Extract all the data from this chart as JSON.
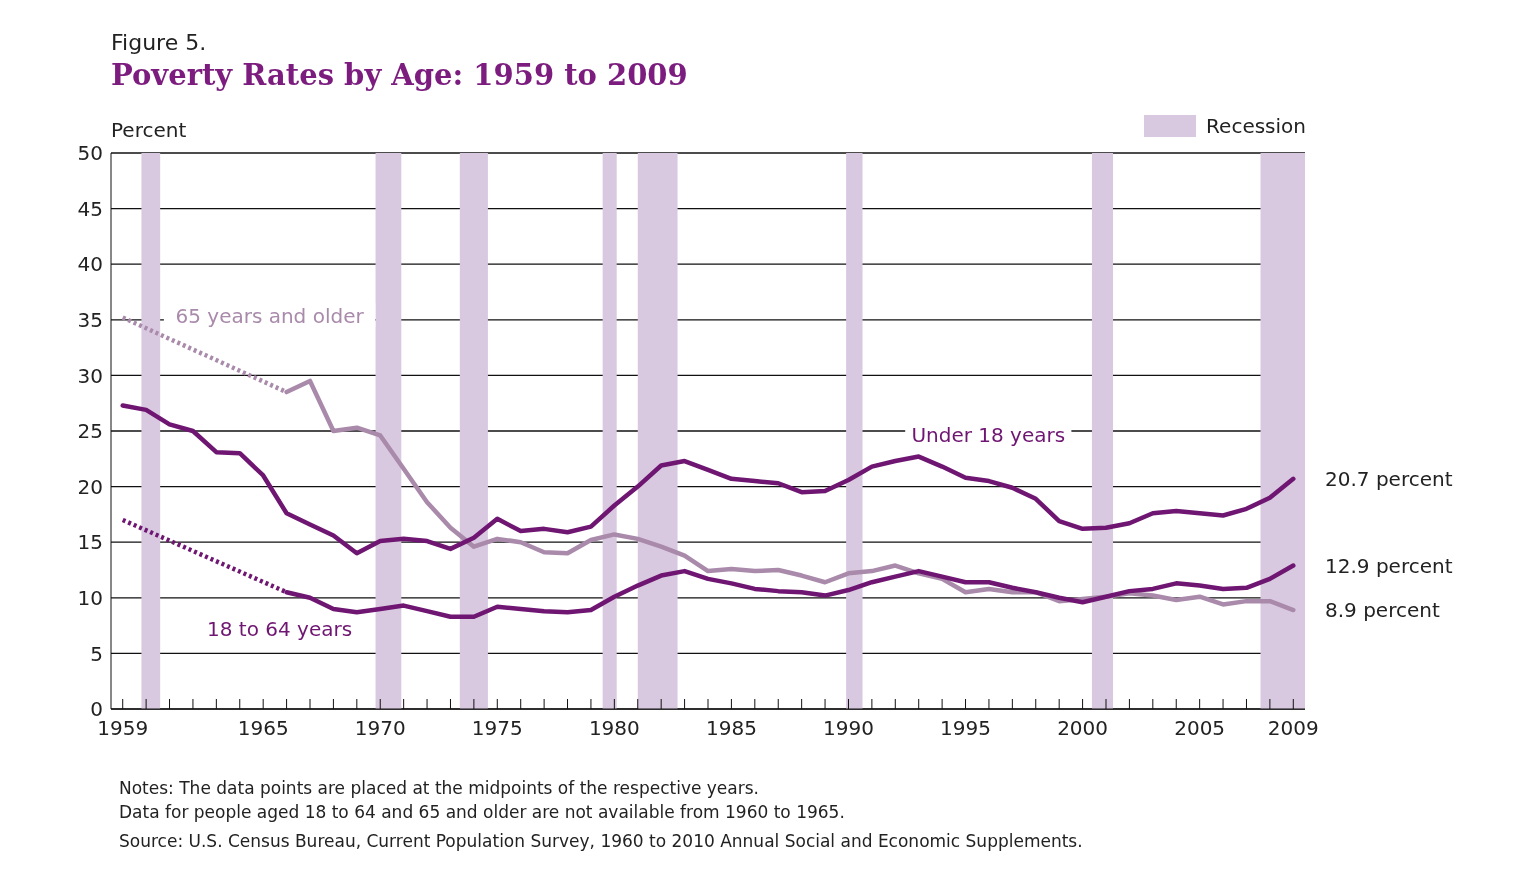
{
  "chart_data": {
    "type": "line",
    "subtitle": "Figure 5.",
    "title": "Poverty Rates by Age: 1959 to 2009",
    "ylabel": "Percent",
    "xlim": [
      1958.5,
      2009.5
    ],
    "ylim": [
      0,
      50
    ],
    "yticks": [
      0,
      5,
      10,
      15,
      20,
      25,
      30,
      35,
      40,
      45,
      50
    ],
    "xticks": [
      1959,
      {
        "value": 1960,
        "label": null
      },
      {
        "value": 1961,
        "label": null
      },
      {
        "value": 1962,
        "label": null
      },
      {
        "value": 1963,
        "label": null
      },
      {
        "value": 1964,
        "label": null
      },
      1965,
      {
        "value": 1966,
        "label": null
      },
      {
        "value": 1967,
        "label": null
      },
      {
        "value": 1968,
        "label": null
      },
      {
        "value": 1969,
        "label": null
      },
      1970,
      {
        "value": 1971,
        "label": null
      },
      {
        "value": 1972,
        "label": null
      },
      {
        "value": 1973,
        "label": null
      },
      {
        "value": 1974,
        "label": null
      },
      1975,
      {
        "value": 1976,
        "label": null
      },
      {
        "value": 1977,
        "label": null
      },
      {
        "value": 1978,
        "label": null
      },
      {
        "value": 1979,
        "label": null
      },
      1980,
      {
        "value": 1981,
        "label": null
      },
      {
        "value": 1982,
        "label": null
      },
      {
        "value": 1983,
        "label": null
      },
      {
        "value": 1984,
        "label": null
      },
      1985,
      {
        "value": 1986,
        "label": null
      },
      {
        "value": 1987,
        "label": null
      },
      {
        "value": 1988,
        "label": null
      },
      {
        "value": 1989,
        "label": null
      },
      1990,
      {
        "value": 1991,
        "label": null
      },
      {
        "value": 1992,
        "label": null
      },
      {
        "value": 1993,
        "label": null
      },
      {
        "value": 1994,
        "label": null
      },
      1995,
      {
        "value": 1996,
        "label": null
      },
      {
        "value": 1997,
        "label": null
      },
      {
        "value": 1998,
        "label": null
      },
      {
        "value": 1999,
        "label": null
      },
      2000,
      {
        "value": 2001,
        "label": null
      },
      {
        "value": 2002,
        "label": null
      },
      {
        "value": 2003,
        "label": null
      },
      {
        "value": 2004,
        "label": null
      },
      2005,
      {
        "value": 2006,
        "label": null
      },
      {
        "value": 2007,
        "label": null
      },
      {
        "value": 2008,
        "label": null
      },
      2009
    ],
    "grid": "y",
    "legend": "top right",
    "marker": "none",
    "series": [
      {
        "color": "#a98aab",
        "line_style": "dotted",
        "x": [
          1959,
          1966
        ],
        "values": [
          35.2,
          28.5
        ]
      },
      {
        "name": "65 years and older",
        "color": "#a98aab",
        "line_style": "solid",
        "x": [
          1966,
          1967,
          1968,
          1969,
          1970,
          1971,
          1972,
          1973,
          1974,
          1975,
          1976,
          1977,
          1978,
          1979,
          1980,
          1981,
          1982,
          1983,
          1984,
          1985,
          1986,
          1987,
          1988,
          1989,
          1990,
          1991,
          1992,
          1993,
          1994,
          1995,
          1996,
          1997,
          1998,
          1999,
          2000,
          2001,
          2002,
          2003,
          2004,
          2005,
          2006,
          2007,
          2008,
          2009
        ],
        "values": [
          28.5,
          29.5,
          25.0,
          25.3,
          24.6,
          21.6,
          18.6,
          16.3,
          14.6,
          15.3,
          15.0,
          14.1,
          14.0,
          15.2,
          15.7,
          15.3,
          14.6,
          13.8,
          12.4,
          12.6,
          12.4,
          12.5,
          12.0,
          11.4,
          12.2,
          12.4,
          12.9,
          12.2,
          11.7,
          10.5,
          10.8,
          10.5,
          10.5,
          9.7,
          9.9,
          10.1,
          10.4,
          10.2,
          9.8,
          10.1,
          9.4,
          9.7,
          9.7,
          8.9
        ]
      },
      {
        "color": "#6f1672",
        "line_style": "dotted",
        "x": [
          1959,
          1966
        ],
        "values": [
          17.0,
          10.5
        ]
      },
      {
        "name": "18 to 64 years",
        "color": "#6f1672",
        "line_style": "solid",
        "x": [
          1966,
          1967,
          1968,
          1969,
          1970,
          1971,
          1972,
          1973,
          1974,
          1975,
          1976,
          1977,
          1978,
          1979,
          1980,
          1981,
          1982,
          1983,
          1984,
          1985,
          1986,
          1987,
          1988,
          1989,
          1990,
          1991,
          1992,
          1993,
          1994,
          1995,
          1996,
          1997,
          1998,
          1999,
          2000,
          2001,
          2002,
          2003,
          2004,
          2005,
          2006,
          2007,
          2008,
          2009
        ],
        "values": [
          10.5,
          10.0,
          9.0,
          8.7,
          9.0,
          9.3,
          8.8,
          8.3,
          8.3,
          9.2,
          9.0,
          8.8,
          8.7,
          8.9,
          10.1,
          11.1,
          12.0,
          12.4,
          11.7,
          11.3,
          10.8,
          10.6,
          10.5,
          10.2,
          10.7,
          11.4,
          11.9,
          12.4,
          11.9,
          11.4,
          11.4,
          10.9,
          10.5,
          10.0,
          9.6,
          10.1,
          10.6,
          10.8,
          11.3,
          11.1,
          10.8,
          10.9,
          11.7,
          12.9
        ]
      },
      {
        "name": "Under 18 years",
        "color": "#6f1672",
        "line_style": "solid",
        "x": [
          1959,
          1960,
          1961,
          1962,
          1963,
          1964,
          1965,
          1966,
          1967,
          1968,
          1969,
          1970,
          1971,
          1972,
          1973,
          1974,
          1975,
          1976,
          1977,
          1978,
          1979,
          1980,
          1981,
          1982,
          1983,
          1984,
          1985,
          1986,
          1987,
          1988,
          1989,
          1990,
          1991,
          1992,
          1993,
          1994,
          1995,
          1996,
          1997,
          1998,
          1999,
          2000,
          2001,
          2002,
          2003,
          2004,
          2005,
          2006,
          2007,
          2008,
          2009
        ],
        "values": [
          27.3,
          26.9,
          25.6,
          25.0,
          23.1,
          23.0,
          21.0,
          17.6,
          16.6,
          15.6,
          14.0,
          15.1,
          15.3,
          15.1,
          14.4,
          15.4,
          17.1,
          16.0,
          16.2,
          15.9,
          16.4,
          18.3,
          20.0,
          21.9,
          22.3,
          21.5,
          20.7,
          20.5,
          20.3,
          19.5,
          19.6,
          20.6,
          21.8,
          22.3,
          22.7,
          21.8,
          20.8,
          20.5,
          19.9,
          18.9,
          16.9,
          16.2,
          16.3,
          16.7,
          17.6,
          17.8,
          17.6,
          17.4,
          18.0,
          19.0,
          20.7
        ]
      }
    ],
    "bands": [
      {
        "axis": "x",
        "from": 1959.8,
        "to": 1960.6,
        "label": "Recession",
        "color": "#d9c9e0"
      },
      {
        "axis": "x",
        "from": 1969.8,
        "to": 1970.9,
        "color": "#d9c9e0"
      },
      {
        "axis": "x",
        "from": 1973.4,
        "to": 1974.6,
        "color": "#d9c9e0"
      },
      {
        "axis": "x",
        "from": 1979.5,
        "to": 1980.1,
        "color": "#d9c9e0"
      },
      {
        "axis": "x",
        "from": 1981.0,
        "to": 1982.7,
        "color": "#d9c9e0"
      },
      {
        "axis": "x",
        "from": 1989.9,
        "to": 1990.6,
        "color": "#d9c9e0"
      },
      {
        "axis": "x",
        "from": 2000.4,
        "to": 2001.3,
        "color": "#d9c9e0"
      },
      {
        "axis": "x",
        "from": 2007.6,
        "to": 2009.5,
        "color": "#d9c9e0"
      }
    ],
    "annotations": [
      "20.7 percent",
      "12.9 percent",
      "8.9 percent",
      "Notes:  The data points are placed at the midpoints of the respective years.",
      "Data for people aged 18 to 64 and 65 and older are not available from 1960 to 1965.",
      "Source:  U.S. Census Bureau, Current Population Survey, 1960 to 2010 Annual Social and Economic Supplements."
    ]
  }
}
